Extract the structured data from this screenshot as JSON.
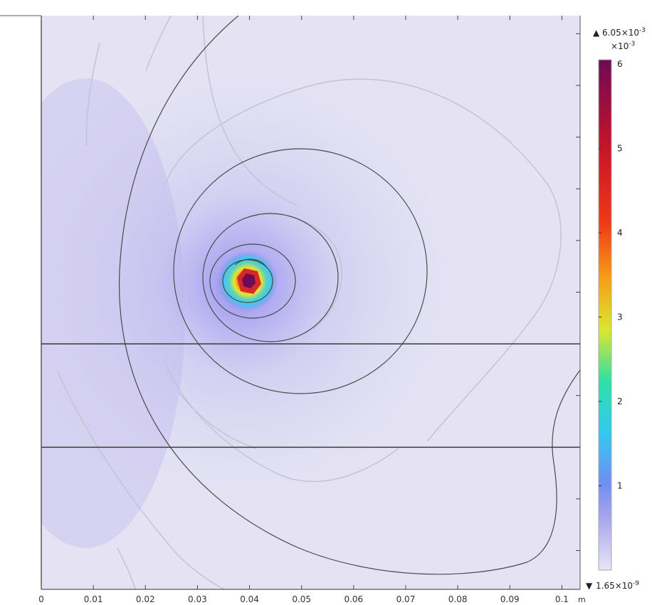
{
  "chart_data": {
    "type": "heatmap",
    "title": "",
    "x_axis": {
      "ticks": [
        0,
        0.01,
        0.02,
        0.03,
        0.04,
        0.05,
        0.06,
        0.07,
        0.08,
        0.09,
        0.1
      ],
      "tick_labels": [
        "0",
        "0.01",
        "0.02",
        "0.03",
        "0.04",
        "0.05",
        "0.06",
        "0.07",
        "0.08",
        "0.09",
        "0.1"
      ],
      "unit": "m",
      "range": [
        0,
        0.1035
      ]
    },
    "y_axis": {
      "tick_labels_visible": false,
      "range": [
        -0.0575,
        0.0535
      ]
    },
    "field": {
      "max_label": "6.05×10",
      "max_exponent": "-3",
      "min_label": "1.65×10",
      "min_exponent": "-9",
      "peak": {
        "x": 0.0395,
        "y": 0.0
      },
      "colormap": [
        "#e7e5f4",
        "#8c86ea",
        "#3bd0f0",
        "#d9e632",
        "#f5a018",
        "#d52828",
        "#6e0a56"
      ],
      "background_color": "#e5e3f3"
    },
    "colorbar": {
      "multiplier_label": "×10",
      "multiplier_exponent": "-3",
      "ticks": [
        1,
        2,
        3,
        4,
        5,
        6
      ],
      "tick_labels": [
        "1",
        "2",
        "3",
        "4",
        "5",
        "6"
      ],
      "range": [
        0,
        6.05
      ]
    },
    "boundaries": {
      "horizontal_lines_y": [
        -0.01,
        -0.03
      ]
    },
    "grid": false
  }
}
